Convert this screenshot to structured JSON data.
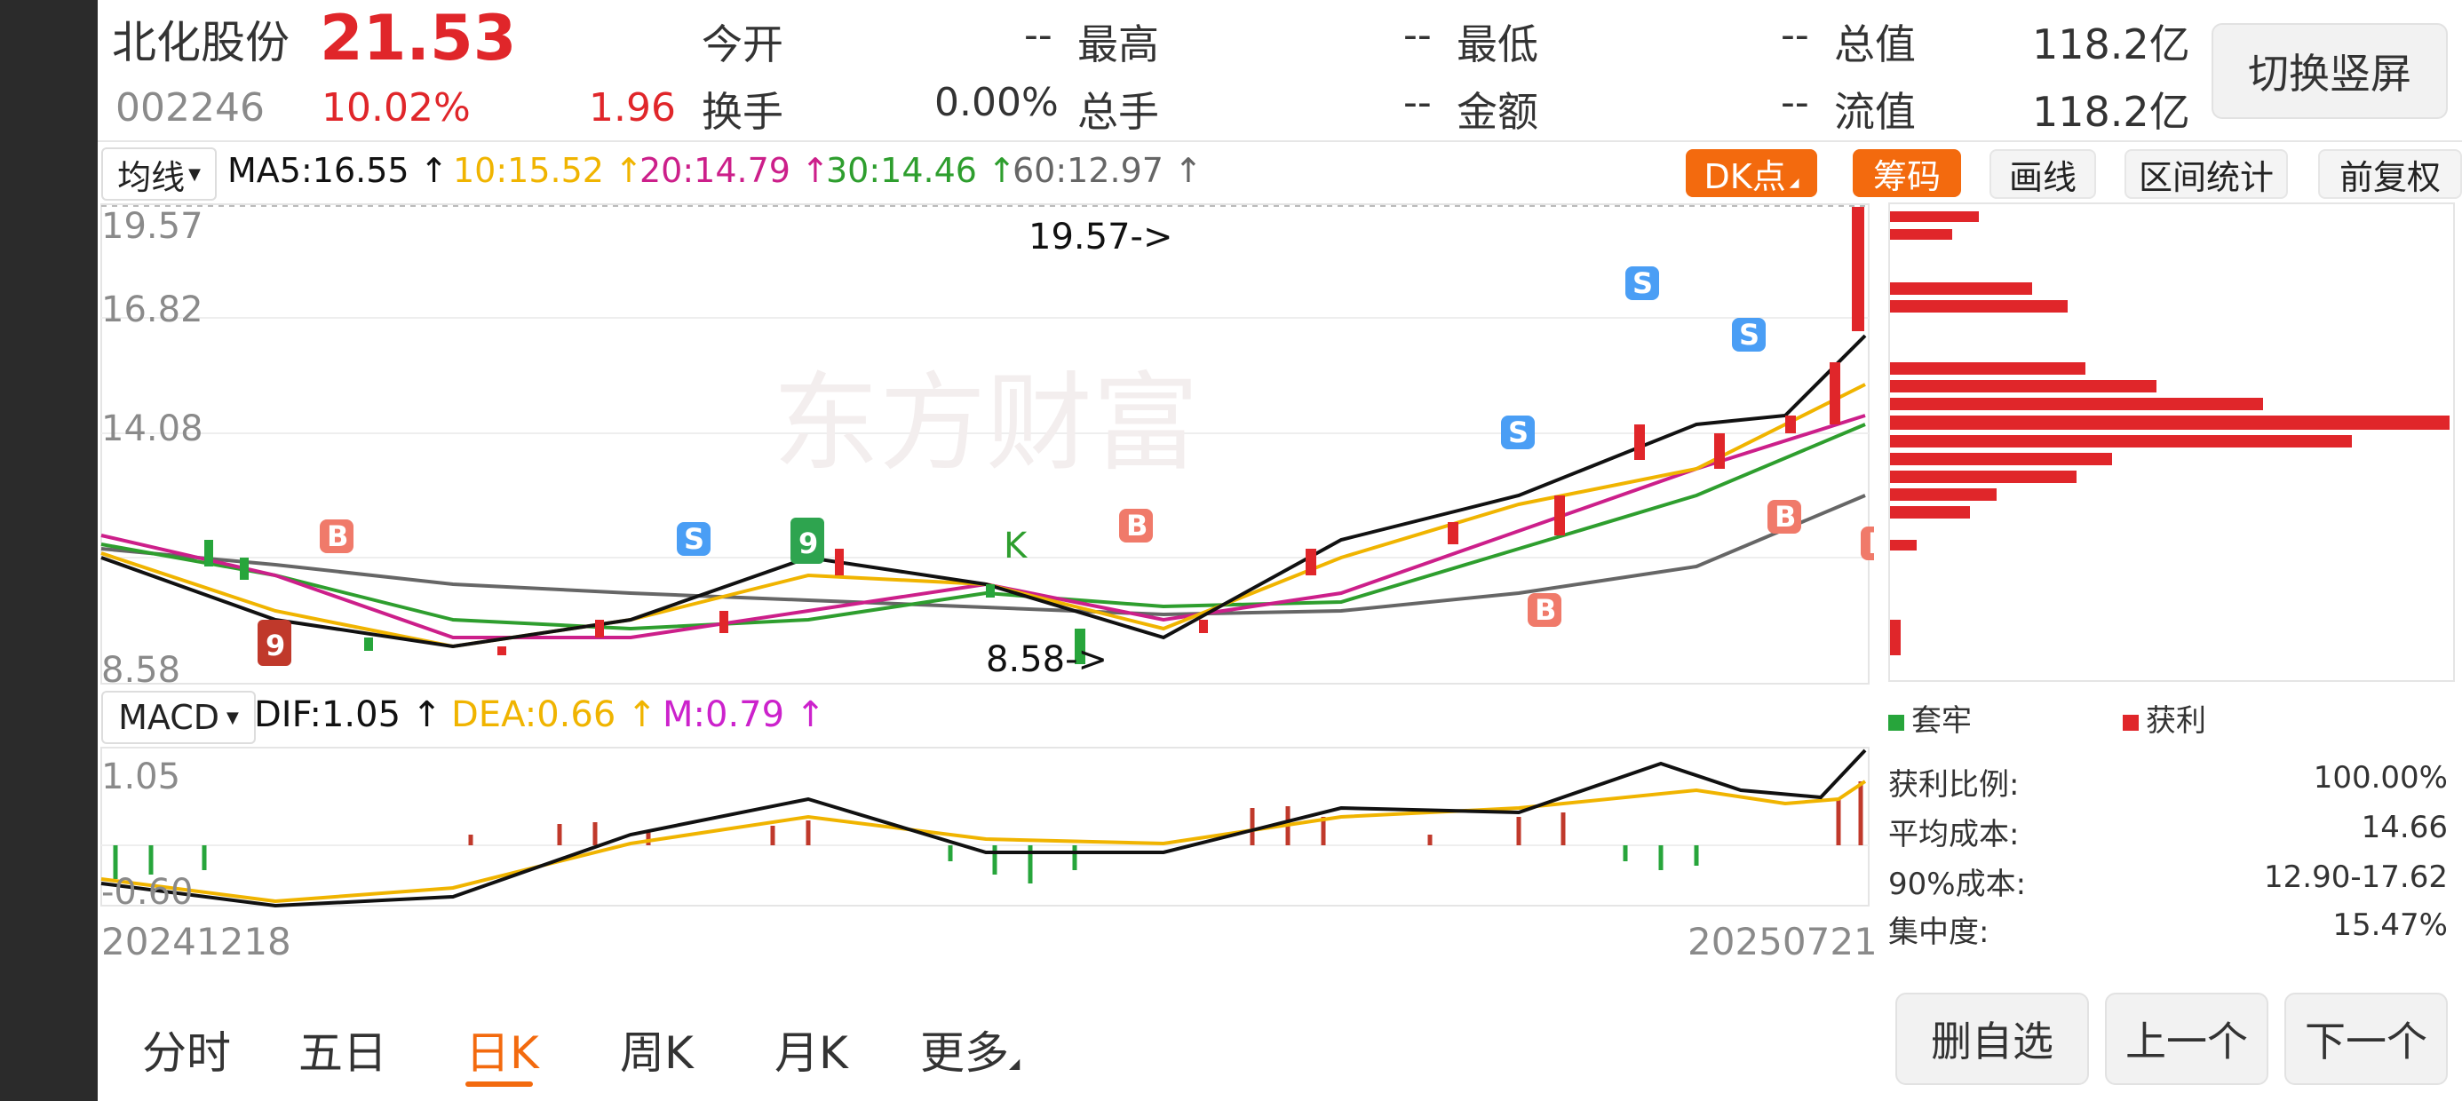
{
  "stock": {
    "name": "北化股份",
    "code": "002246",
    "price": "21.53",
    "change_pct": "10.02%",
    "change_amt": "1.96",
    "fields": [
      {
        "label": "今开",
        "value": "--"
      },
      {
        "label": "最高",
        "value": "--"
      },
      {
        "label": "最低",
        "value": "--"
      },
      {
        "label": "总值",
        "value": "118.2亿"
      },
      {
        "label": "换手",
        "value": "0.00%"
      },
      {
        "label": "总手",
        "value": "--"
      },
      {
        "label": "金额",
        "value": "--"
      },
      {
        "label": "流值",
        "value": "118.2亿"
      }
    ],
    "switch_button": "切换竖屏"
  },
  "indicator_bar": {
    "selector": "均线",
    "ma5": "MA5:16.55",
    "ma10": "10:15.52",
    "ma20": "20:14.79",
    "ma30": "30:14.46",
    "ma60": "60:12.97",
    "buttons": [
      "DK点",
      "筹码",
      "画线",
      "区间统计",
      "前复权"
    ]
  },
  "price_axis": [
    "19.57",
    "16.82",
    "14.08",
    "8.58"
  ],
  "markers": {
    "high_label": "19.57->",
    "low_label": "8.58->",
    "watermark": "东方财富",
    "k_label": "K"
  },
  "macd_bar": {
    "selector": "MACD",
    "dif": "DIF:1.05",
    "dea": "DEA:0.66",
    "m": "M:0.79"
  },
  "macd_axis": [
    "1.05",
    "-0.60"
  ],
  "dates": {
    "start": "20241218",
    "end": "20250721"
  },
  "chip": {
    "legend_lock": "套牢",
    "legend_profit": "获利",
    "stats": [
      {
        "label": "获利比例:",
        "value": "100.00%"
      },
      {
        "label": "平均成本:",
        "value": "14.66"
      },
      {
        "label": "90%成本:",
        "value": "12.90-17.62"
      },
      {
        "label": "集中度:",
        "value": "15.47%"
      }
    ]
  },
  "bottom_tabs": [
    "分时",
    "五日",
    "日K",
    "周K",
    "月K",
    "更多"
  ],
  "active_tab": "日K",
  "bottom_buttons": [
    "删自选",
    "上一个",
    "下一个"
  ],
  "colors": {
    "up": "#e0262a",
    "down": "#27a53b",
    "accent": "#f36a0e",
    "ma5": "#111111",
    "ma10": "#f0b400",
    "ma20": "#cc1f8a",
    "ma30": "#2e9e2e",
    "ma60": "#666666",
    "dea": "#f0b400",
    "m": "#cc22cc"
  }
}
